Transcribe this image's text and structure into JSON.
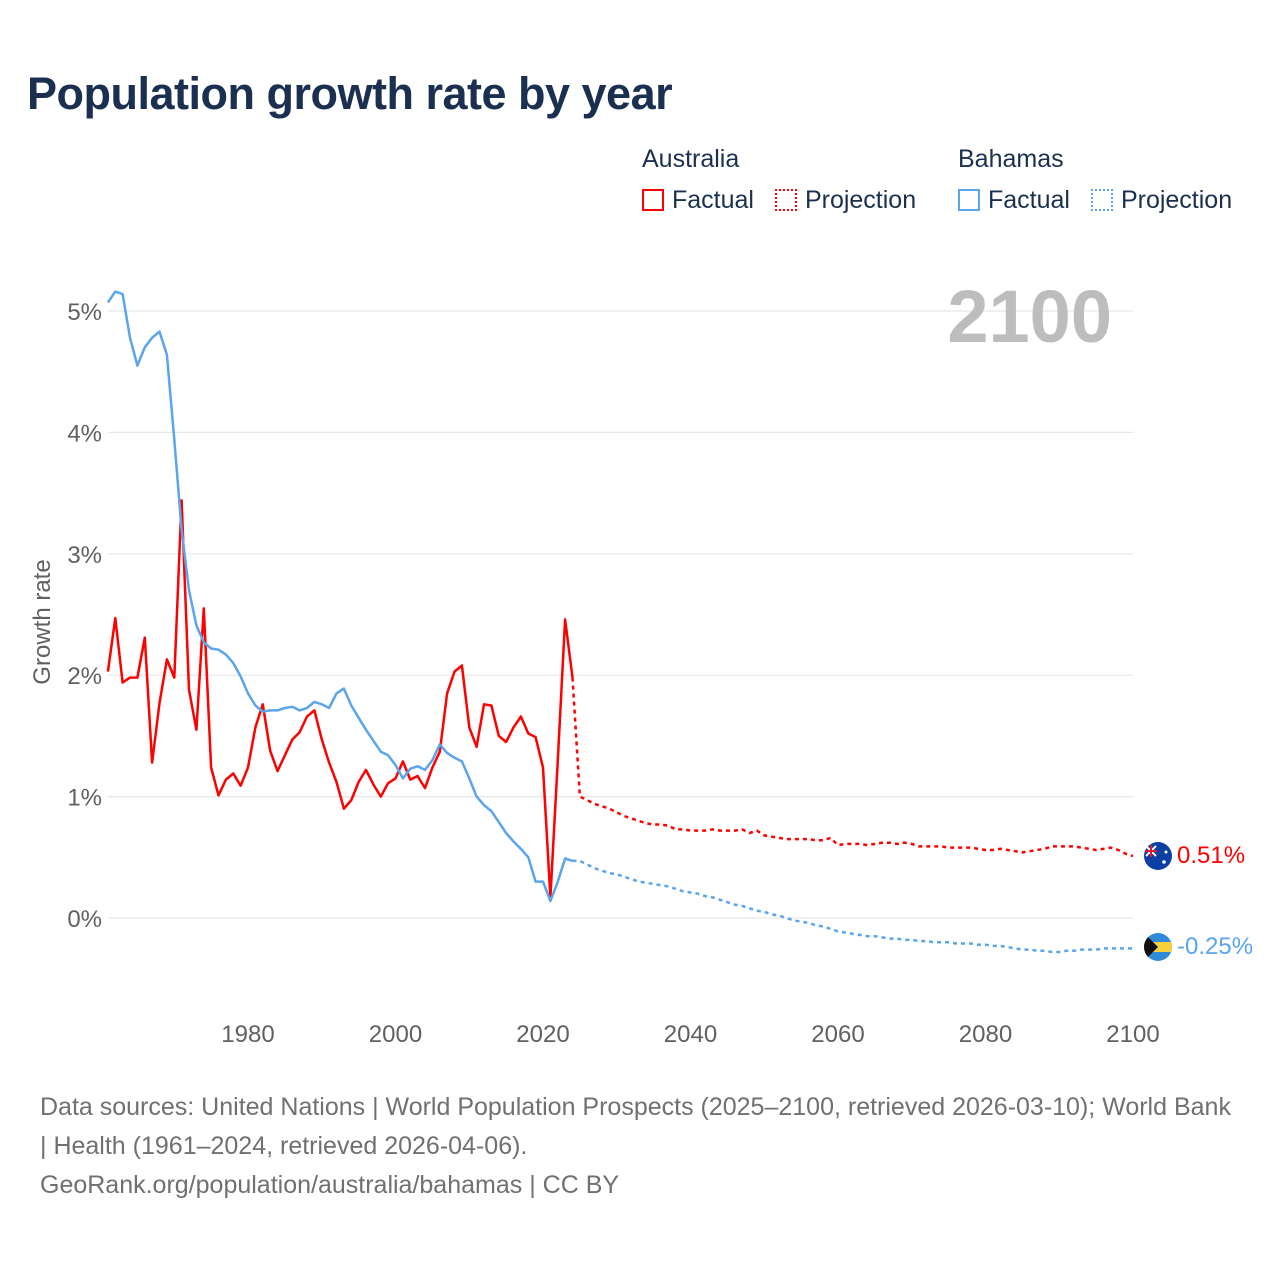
{
  "title": "Population growth rate by year",
  "legend": [
    {
      "country": "Australia",
      "color": "#ff0000",
      "factual": "Factual",
      "projection": "Projection"
    },
    {
      "country": "Bahamas",
      "color": "#5aa5ec",
      "factual": "Factual",
      "projection": "Projection"
    }
  ],
  "year_label": "2100",
  "end_labels": {
    "australia": "0.51%",
    "bahamas": "-0.25%"
  },
  "icons": {
    "australia": "australia-flag-icon",
    "bahamas": "bahamas-flag-icon"
  },
  "footer": {
    "sources": "Data sources: United Nations | World Population Prospects (2025–2100, retrieved 2026-03-10); World Bank | Health (1961–2024, retrieved 2026-04-06).",
    "credit": "GeoRank.org/population/australia/bahamas | CC BY"
  },
  "chart_data": {
    "type": "line",
    "title": "Population growth rate by year",
    "xlabel": "",
    "ylabel": "Growth rate",
    "xlim": [
      1961,
      2100
    ],
    "ylim": [
      -0.8,
      5.2
    ],
    "x_ticks": [
      "1980",
      "2000",
      "2020",
      "2040",
      "2060",
      "2080",
      "2100"
    ],
    "y_ticks": [
      {
        "v": 0,
        "label": "0%"
      },
      {
        "v": 1,
        "label": "1%"
      },
      {
        "v": 2,
        "label": "2%"
      },
      {
        "v": 3,
        "label": "3%"
      },
      {
        "v": 4,
        "label": "4%"
      },
      {
        "v": 5,
        "label": "5%"
      }
    ],
    "grid": true,
    "legend_position": "top-right",
    "series": [
      {
        "name": "Australia",
        "color": "#ff0000",
        "factual_start": 1961,
        "factual": [
          2.03,
          2.47,
          1.94,
          1.98,
          1.98,
          2.31,
          1.28,
          1.77,
          2.13,
          1.98,
          3.44,
          1.88,
          1.55,
          2.55,
          1.24,
          1.01,
          1.14,
          1.19,
          1.09,
          1.24,
          1.57,
          1.76,
          1.38,
          1.21,
          1.34,
          1.47,
          1.53,
          1.66,
          1.71,
          1.47,
          1.28,
          1.12,
          0.9,
          0.97,
          1.12,
          1.22,
          1.1,
          1.0,
          1.11,
          1.15,
          1.29,
          1.14,
          1.17,
          1.07,
          1.24,
          1.37,
          1.85,
          2.03,
          2.08,
          1.57,
          1.41,
          1.76,
          1.75,
          1.5,
          1.45,
          1.57,
          1.66,
          1.52,
          1.49,
          1.24,
          0.17,
          1.3,
          2.46,
          1.98
        ],
        "projection_start": 2025,
        "projection": [
          1.0,
          0.97,
          0.94,
          0.92,
          0.9,
          0.87,
          0.84,
          0.82,
          0.8,
          0.78,
          0.77,
          0.77,
          0.76,
          0.73,
          0.73,
          0.72,
          0.72,
          0.72,
          0.73,
          0.72,
          0.72,
          0.72,
          0.73,
          0.7,
          0.72,
          0.68,
          0.67,
          0.66,
          0.65,
          0.65,
          0.65,
          0.65,
          0.64,
          0.64,
          0.66,
          0.6,
          0.61,
          0.61,
          0.61,
          0.6,
          0.61,
          0.62,
          0.62,
          0.61,
          0.62,
          0.61,
          0.59,
          0.59,
          0.59,
          0.59,
          0.58,
          0.58,
          0.58,
          0.58,
          0.57,
          0.56,
          0.56,
          0.57,
          0.56,
          0.55,
          0.54,
          0.55,
          0.56,
          0.57,
          0.59,
          0.59,
          0.59,
          0.59,
          0.58,
          0.57,
          0.56,
          0.57,
          0.58,
          0.56,
          0.53,
          0.51
        ]
      },
      {
        "name": "Bahamas",
        "color": "#5aa5ec",
        "factual_start": 1961,
        "factual": [
          5.07,
          5.16,
          5.14,
          4.78,
          4.55,
          4.7,
          4.78,
          4.83,
          4.64,
          3.94,
          3.2,
          2.7,
          2.41,
          2.27,
          2.22,
          2.21,
          2.17,
          2.1,
          1.99,
          1.85,
          1.75,
          1.7,
          1.71,
          1.71,
          1.73,
          1.74,
          1.71,
          1.73,
          1.78,
          1.76,
          1.73,
          1.85,
          1.89,
          1.75,
          1.65,
          1.55,
          1.46,
          1.37,
          1.34,
          1.26,
          1.15,
          1.23,
          1.25,
          1.22,
          1.3,
          1.43,
          1.36,
          1.32,
          1.29,
          1.15,
          1.0,
          0.93,
          0.88,
          0.79,
          0.7,
          0.63,
          0.57,
          0.5,
          0.3,
          0.3,
          0.14,
          0.3,
          0.49,
          0.47
        ],
        "projection_start": 2025,
        "projection": [
          0.47,
          0.44,
          0.41,
          0.39,
          0.37,
          0.36,
          0.34,
          0.32,
          0.3,
          0.29,
          0.28,
          0.27,
          0.26,
          0.24,
          0.22,
          0.21,
          0.2,
          0.18,
          0.17,
          0.15,
          0.13,
          0.11,
          0.1,
          0.08,
          0.06,
          0.05,
          0.03,
          0.02,
          0.0,
          -0.02,
          -0.03,
          -0.04,
          -0.06,
          -0.07,
          -0.09,
          -0.11,
          -0.12,
          -0.13,
          -0.14,
          -0.15,
          -0.15,
          -0.16,
          -0.17,
          -0.17,
          -0.18,
          -0.18,
          -0.19,
          -0.19,
          -0.2,
          -0.2,
          -0.2,
          -0.21,
          -0.21,
          -0.21,
          -0.22,
          -0.22,
          -0.23,
          -0.23,
          -0.24,
          -0.25,
          -0.26,
          -0.26,
          -0.27,
          -0.27,
          -0.28,
          -0.28,
          -0.27,
          -0.27,
          -0.26,
          -0.26,
          -0.26,
          -0.25,
          -0.25,
          -0.25,
          -0.25,
          -0.25
        ]
      }
    ]
  }
}
